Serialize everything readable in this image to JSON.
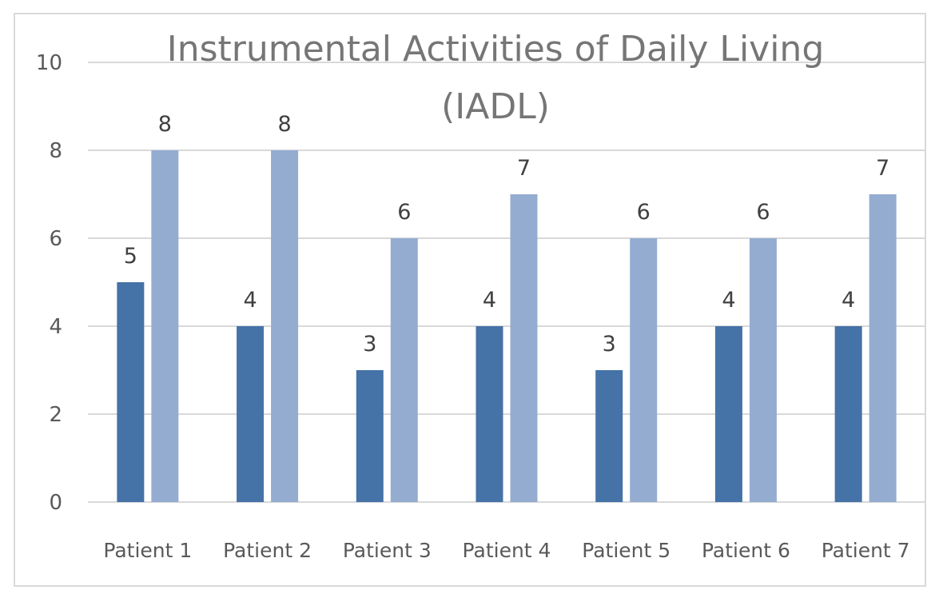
{
  "chart_data": {
    "type": "bar",
    "title_lines": [
      "Instrumental Activities of Daily Living",
      "(IADL)"
    ],
    "xlabel": "",
    "ylabel": "",
    "categories": [
      "Patient 1",
      "Patient 2",
      "Patient 3",
      "Patient 4",
      "Patient 5",
      "Patient 6",
      "Patient 7"
    ],
    "series": [
      {
        "color": "#4572a7",
        "values": [
          5,
          4,
          3,
          4,
          3,
          4,
          4
        ]
      },
      {
        "color": "#95acd1",
        "values": [
          8,
          8,
          6,
          7,
          6,
          6,
          7
        ]
      }
    ],
    "ylim": [
      0,
      10
    ],
    "yticks": [
      0,
      2,
      4,
      6,
      8,
      10
    ],
    "grid": true,
    "legend": "none",
    "data_labels": true
  }
}
